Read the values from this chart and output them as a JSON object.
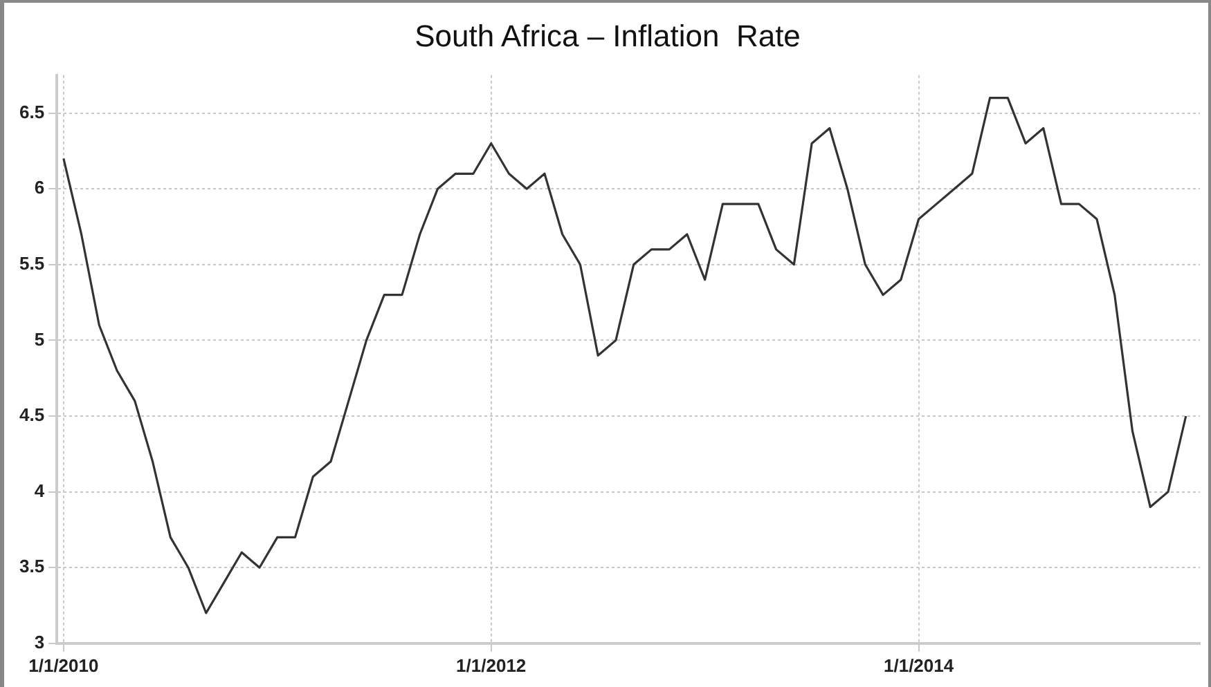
{
  "chart_data": {
    "type": "line",
    "title": "South Africa – Inflation  Rate",
    "x": [
      "2010-01",
      "2010-02",
      "2010-03",
      "2010-04",
      "2010-05",
      "2010-06",
      "2010-07",
      "2010-08",
      "2010-09",
      "2010-10",
      "2010-11",
      "2010-12",
      "2011-01",
      "2011-02",
      "2011-03",
      "2011-04",
      "2011-05",
      "2011-06",
      "2011-07",
      "2011-08",
      "2011-09",
      "2011-10",
      "2011-11",
      "2011-12",
      "2012-01",
      "2012-02",
      "2012-03",
      "2012-04",
      "2012-05",
      "2012-06",
      "2012-07",
      "2012-08",
      "2012-09",
      "2012-10",
      "2012-11",
      "2012-12",
      "2013-01",
      "2013-02",
      "2013-03",
      "2013-04",
      "2013-05",
      "2013-06",
      "2013-07",
      "2013-08",
      "2013-09",
      "2013-10",
      "2013-11",
      "2013-12",
      "2014-01",
      "2014-02",
      "2014-03",
      "2014-04",
      "2014-05",
      "2014-06",
      "2014-07",
      "2014-08",
      "2014-09",
      "2014-10",
      "2014-11",
      "2014-12",
      "2015-01",
      "2015-02",
      "2015-03",
      "2015-04"
    ],
    "series": [
      {
        "color": "#333333",
        "values": [
          6.2,
          5.7,
          5.1,
          4.8,
          4.6,
          4.2,
          3.7,
          3.5,
          3.2,
          3.4,
          3.6,
          3.5,
          3.7,
          3.7,
          4.1,
          4.2,
          4.6,
          5.0,
          5.3,
          5.3,
          5.7,
          6.0,
          6.1,
          6.1,
          6.3,
          6.1,
          6.0,
          6.1,
          5.7,
          5.5,
          4.9,
          5.0,
          5.5,
          5.6,
          5.6,
          5.7,
          5.4,
          5.9,
          5.9,
          5.9,
          5.6,
          5.5,
          6.3,
          6.4,
          6.0,
          5.5,
          5.3,
          5.4,
          5.8,
          5.9,
          6.0,
          6.1,
          6.6,
          6.6,
          6.3,
          6.4,
          5.9,
          5.9,
          5.8,
          5.3,
          4.4,
          3.9,
          4.0,
          4.5
        ]
      }
    ],
    "xlim": [
      "2009-12-20",
      "2015-04-25"
    ],
    "xticks": [
      {
        "value": "2010-01-01",
        "label": "1/1/2010"
      },
      {
        "value": "2012-01-01",
        "label": "1/1/2012"
      },
      {
        "value": "2014-01-01",
        "label": "1/1/2014"
      }
    ],
    "ylim": [
      3,
      6.75
    ],
    "yticks": [
      3,
      3.5,
      4,
      4.5,
      5,
      5.5,
      6,
      6.5
    ],
    "grid": true,
    "legend": false,
    "marker": "none",
    "line_style": "solid"
  }
}
